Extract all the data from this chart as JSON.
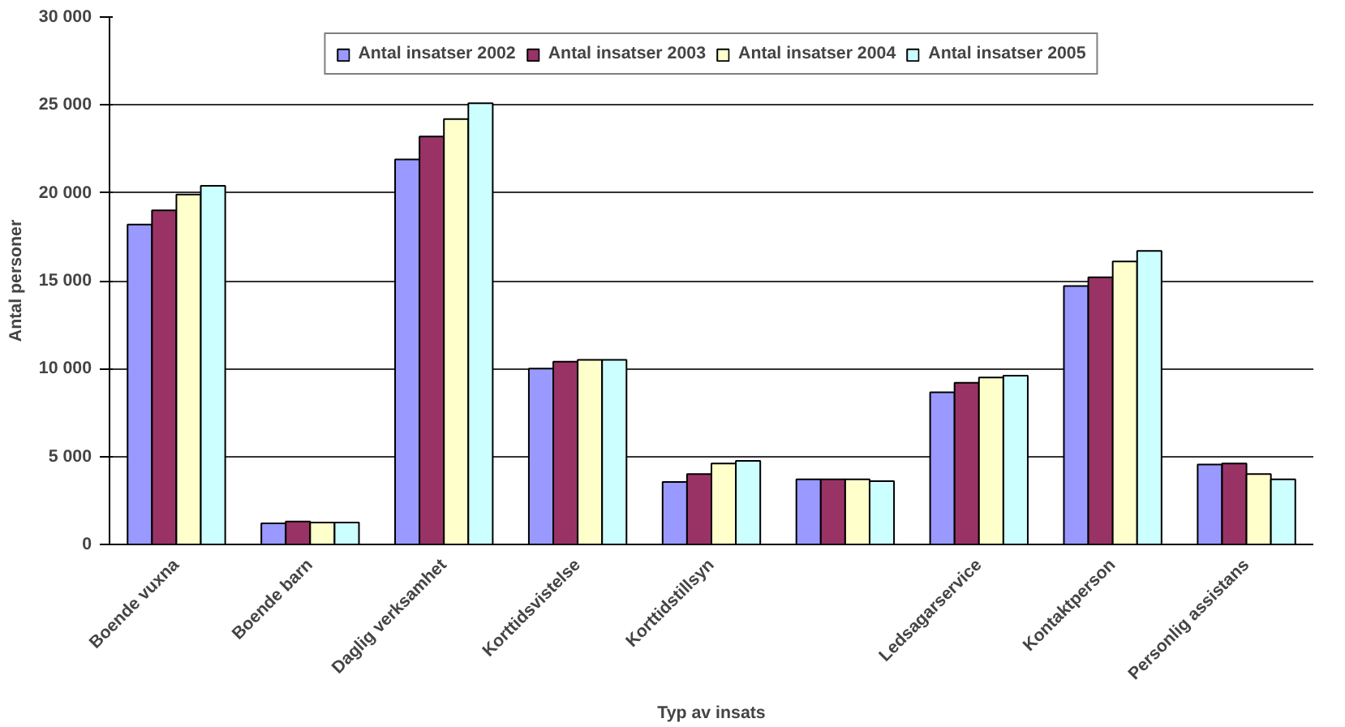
{
  "chart_data": {
    "type": "bar",
    "xlabel": "Typ av insats",
    "ylabel": "Antal personer",
    "categories": [
      "Boende vuxna",
      "Boende barn",
      "Daglig verksamhet",
      "Korttidsvistelse",
      "Korttidstillsyn",
      null,
      "Ledsagarservice",
      "Kontaktperson",
      "Personlig assistans"
    ],
    "series": [
      {
        "name": "Antal insatser 2002",
        "color": "#9999ff",
        "values": [
          18200,
          1200,
          21900,
          10000,
          3550,
          3700,
          8650,
          14700,
          4550
        ]
      },
      {
        "name": "Antal insatser 2003",
        "color": "#993366",
        "values": [
          19000,
          1300,
          23200,
          10400,
          4000,
          3700,
          9200,
          15200,
          4600
        ]
      },
      {
        "name": "Antal insatser 2004",
        "color": "#ffffcc",
        "values": [
          19900,
          1250,
          24200,
          10500,
          4600,
          3700,
          9500,
          16100,
          4000
        ]
      },
      {
        "name": "Antal insatser 2005",
        "color": "#ccffff",
        "values": [
          20400,
          1250,
          25100,
          10500,
          4750,
          3600,
          9600,
          16700,
          3700
        ]
      }
    ],
    "ylim": [
      0,
      30000
    ],
    "yticks": [
      {
        "value": 0,
        "label": "0"
      },
      {
        "value": 5000,
        "label": "5 000"
      },
      {
        "value": 10000,
        "label": "10 000"
      },
      {
        "value": 15000,
        "label": "15 000"
      },
      {
        "value": 20000,
        "label": "20 000"
      },
      {
        "value": 25000,
        "label": "25 000"
      },
      {
        "value": 30000,
        "label": "30 000"
      }
    ],
    "grid": "y",
    "legend": "top"
  }
}
